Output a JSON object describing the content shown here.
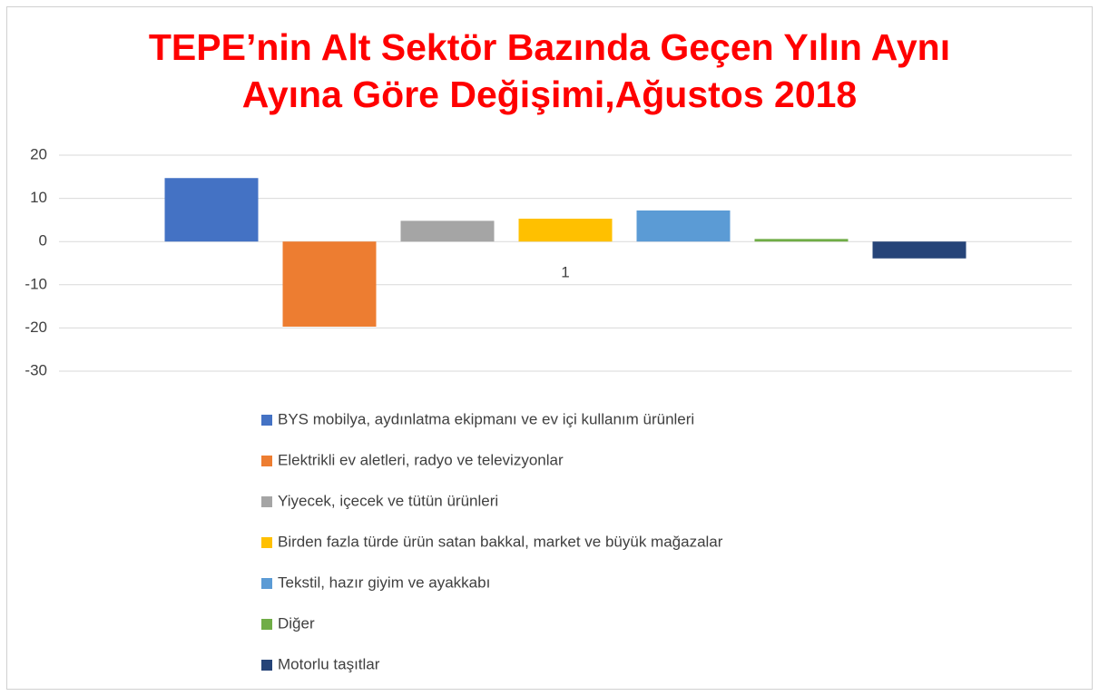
{
  "chart_data": {
    "type": "bar",
    "title": "TEPE’nin Alt Sektör Bazında Geçen Yılın Aynı Ayına Göre Değişimi,Ağustos 2018",
    "categories": [
      "1"
    ],
    "series": [
      {
        "name": "BYS mobilya, aydınlatma ekipmanı ve ev içi kullanım ürünleri",
        "color": "#4472c4",
        "values": [
          14.7
        ]
      },
      {
        "name": "Elektrikli ev aletleri, radyo ve televizyonlar",
        "color": "#ed7d31",
        "values": [
          -19.7
        ]
      },
      {
        "name": "Yiyecek, içecek ve tütün ürünleri",
        "color": "#a5a5a5",
        "values": [
          4.8
        ]
      },
      {
        "name": "Birden fazla türde ürün satan bakkal, market ve büyük mağazalar",
        "color": "#ffc000",
        "values": [
          5.3
        ]
      },
      {
        "name": "Tekstil, hazır giyim ve ayakkabı",
        "color": "#5b9bd5",
        "values": [
          7.2
        ]
      },
      {
        "name": "Diğer",
        "color": "#70ad47",
        "values": [
          0.6
        ]
      },
      {
        "name": "Motorlu taşıtlar",
        "color": "#264478",
        "values": [
          -3.9
        ]
      }
    ],
    "ylim": [
      -30,
      20
    ],
    "yticks": [
      -30,
      -20,
      -10,
      0,
      10,
      20
    ],
    "grid": true,
    "legend": "bottom"
  }
}
